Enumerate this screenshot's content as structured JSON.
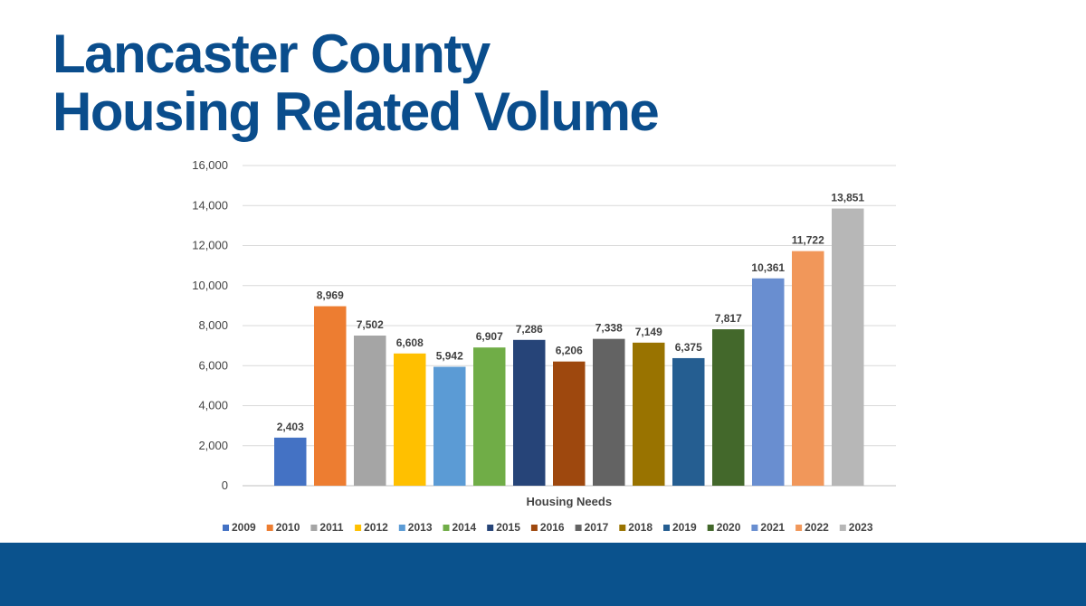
{
  "slide": {
    "title_line1": "Lancaster County",
    "title_line2": "Housing Related Volume"
  },
  "colors": {
    "title": "#0a4d8c",
    "footer_band": "#0a528d"
  },
  "chart_data": {
    "type": "bar",
    "title": "",
    "xlabel": "Housing Needs",
    "ylabel": "",
    "ylim": [
      0,
      16000
    ],
    "yticks": [
      0,
      2000,
      4000,
      6000,
      8000,
      10000,
      12000,
      14000,
      16000
    ],
    "ytick_labels": [
      "0",
      "2,000",
      "4,000",
      "6,000",
      "8,000",
      "10,000",
      "12,000",
      "14,000",
      "16,000"
    ],
    "grid": true,
    "legend_position": "bottom",
    "categories": [
      "Housing Needs"
    ],
    "series": [
      {
        "name": "2009",
        "values": [
          2403
        ],
        "label": "2,403",
        "color": "#4472c4"
      },
      {
        "name": "2010",
        "values": [
          8969
        ],
        "label": "8,969",
        "color": "#ed7d31"
      },
      {
        "name": "2011",
        "values": [
          7502
        ],
        "label": "7,502",
        "color": "#a5a5a5"
      },
      {
        "name": "2012",
        "values": [
          6608
        ],
        "label": "6,608",
        "color": "#ffc000"
      },
      {
        "name": "2013",
        "values": [
          5942
        ],
        "label": "5,942",
        "color": "#5b9bd5"
      },
      {
        "name": "2014",
        "values": [
          6907
        ],
        "label": "6,907",
        "color": "#70ad47"
      },
      {
        "name": "2015",
        "values": [
          7286
        ],
        "label": "7,286",
        "color": "#264478"
      },
      {
        "name": "2016",
        "values": [
          6206
        ],
        "label": "6,206",
        "color": "#9e480e"
      },
      {
        "name": "2017",
        "values": [
          7338
        ],
        "label": "7,338",
        "color": "#636363"
      },
      {
        "name": "2018",
        "values": [
          7149
        ],
        "label": "7,149",
        "color": "#997300"
      },
      {
        "name": "2019",
        "values": [
          6375
        ],
        "label": "6,375",
        "color": "#255e91"
      },
      {
        "name": "2020",
        "values": [
          7817
        ],
        "label": "7,817",
        "color": "#43682b"
      },
      {
        "name": "2021",
        "values": [
          10361
        ],
        "label": "10,361",
        "color": "#698ed0"
      },
      {
        "name": "2022",
        "values": [
          11722
        ],
        "label": "11,722",
        "color": "#f1975a"
      },
      {
        "name": "2023",
        "values": [
          13851
        ],
        "label": "13,851",
        "color": "#b7b7b7"
      }
    ]
  }
}
